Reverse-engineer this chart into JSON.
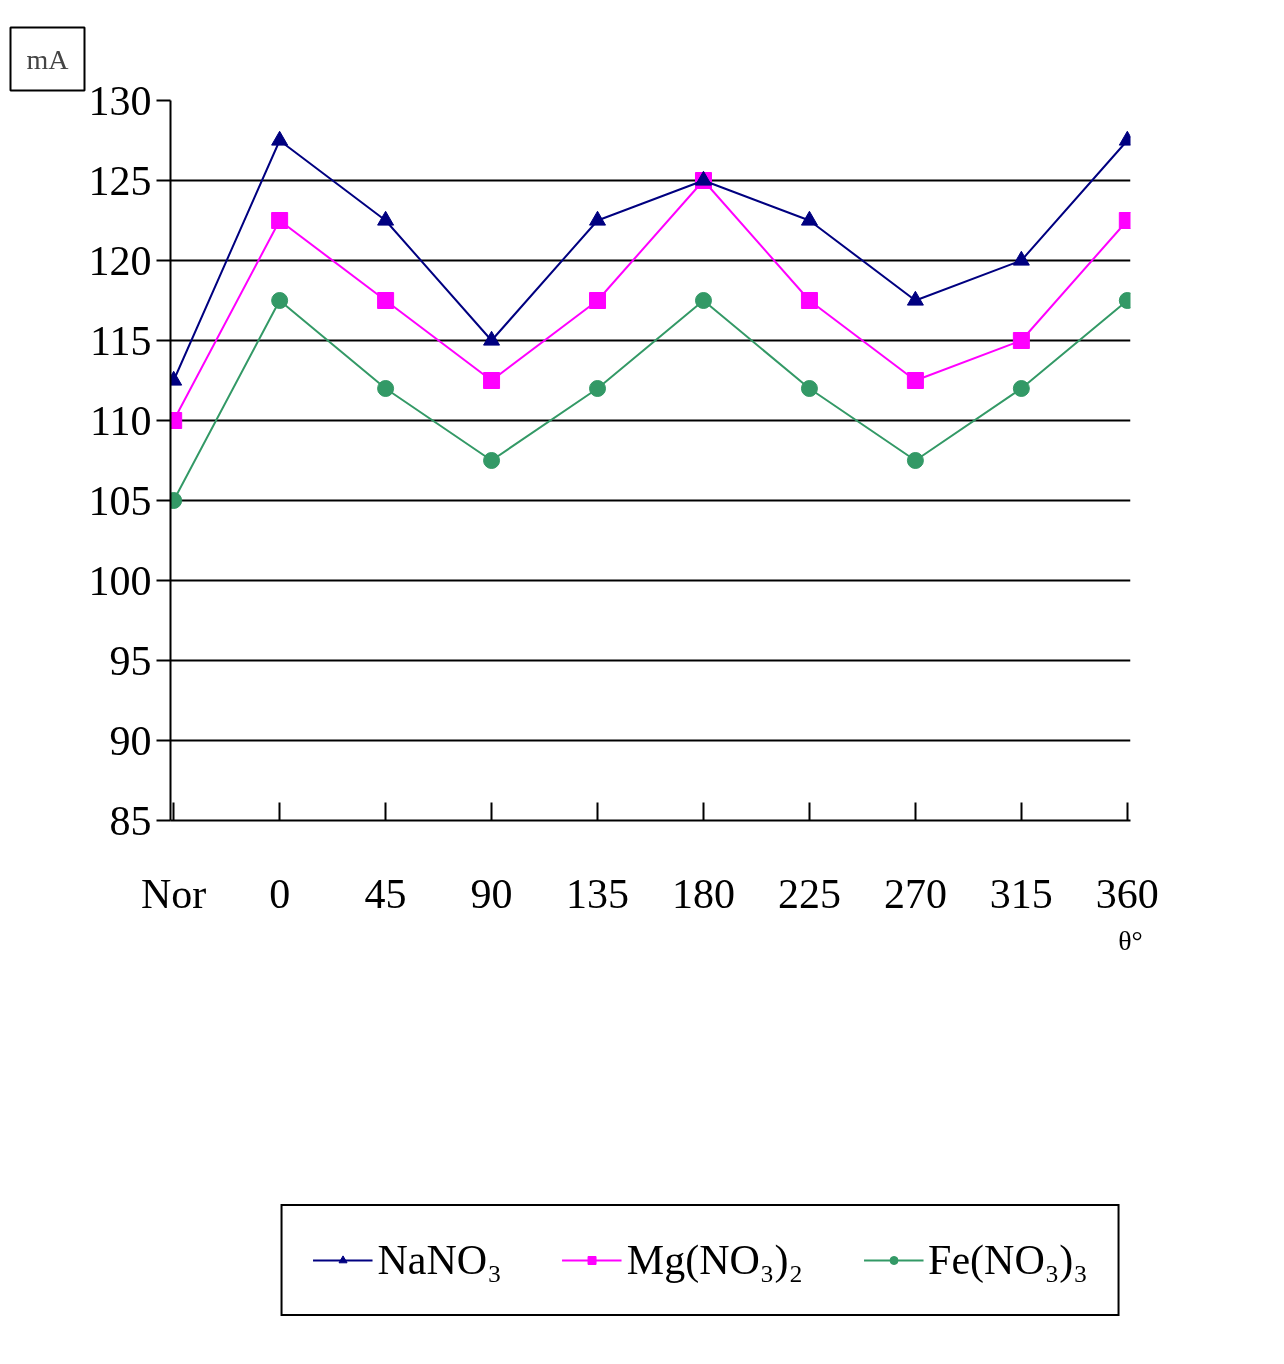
{
  "chart_data": {
    "type": "line",
    "xlabel": "θ°",
    "ylabel": "mA",
    "categories": [
      "Nor",
      "0",
      "45",
      "90",
      "135",
      "180",
      "225",
      "270",
      "315",
      "360"
    ],
    "series": [
      {
        "name": "NaNO₃",
        "color": "#000080",
        "marker": "triangle",
        "values": [
          112.5,
          127.5,
          122.5,
          115,
          122.5,
          125,
          122.5,
          117.5,
          120,
          127.5
        ]
      },
      {
        "name": "Mg(NO₃)₂",
        "color": "#ff00ff",
        "marker": "square",
        "values": [
          110,
          122.5,
          117.5,
          112.5,
          117.5,
          125,
          117.5,
          112.5,
          115,
          122.5
        ]
      },
      {
        "name": "Fe(NO₃)₃",
        "color": "#339966",
        "marker": "circle",
        "values": [
          105,
          117.5,
          112,
          107.5,
          112,
          117.5,
          112,
          107.5,
          112,
          117.5
        ]
      }
    ],
    "ylim": [
      85,
      130
    ],
    "yticks": [
      85,
      90,
      95,
      100,
      105,
      110,
      115,
      120,
      125,
      130
    ],
    "grid": "y",
    "legend": "bottom",
    "line_style": "solid"
  }
}
